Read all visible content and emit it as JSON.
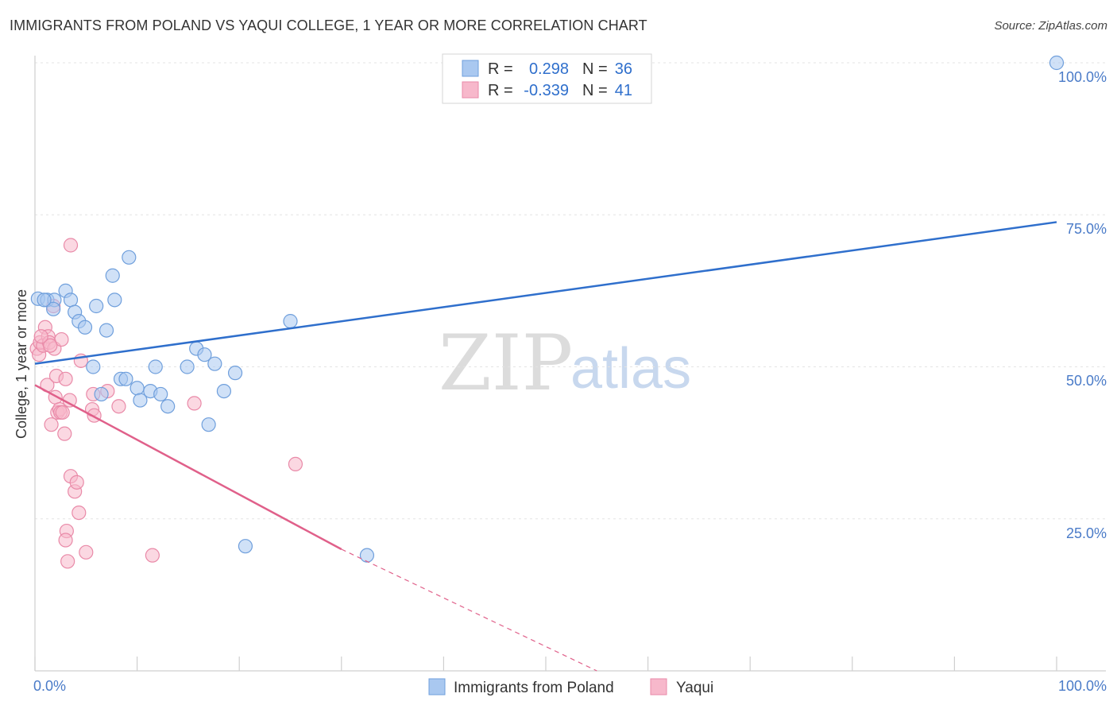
{
  "header": {
    "title": "IMMIGRANTS FROM POLAND VS YAQUI COLLEGE, 1 YEAR OR MORE CORRELATION CHART",
    "source": "Source: ZipAtlas.com"
  },
  "watermark": {
    "zip": "ZIP",
    "atlas": "atlas"
  },
  "legend": {
    "rows": [
      {
        "r_label": "R =",
        "r_value": "0.298",
        "n_label": "N =",
        "n_value": "36"
      },
      {
        "r_label": "R =",
        "r_value": "-0.339",
        "n_label": "N =",
        "n_value": "41"
      }
    ]
  },
  "colors": {
    "blue_fill": "#a9c8f0",
    "blue_stroke": "#6f9fdc",
    "blue_line": "#2f6fcc",
    "pink_fill": "#f7b8cb",
    "pink_stroke": "#e98aa8",
    "pink_line": "#e0608a"
  },
  "chart_data": {
    "type": "scatter",
    "title": "IMMIGRANTS FROM POLAND VS YAQUI COLLEGE, 1 YEAR OR MORE CORRELATION CHART",
    "xlabel": "",
    "ylabel": "College, 1 year or more",
    "xlim": [
      0,
      100
    ],
    "ylim": [
      0,
      100
    ],
    "x_tick_labels": [
      "0.0%",
      "100.0%"
    ],
    "y_tick_labels": [
      "25.0%",
      "50.0%",
      "75.0%",
      "100.0%"
    ],
    "y_ticks": [
      25,
      50,
      75,
      100
    ],
    "series": [
      {
        "name": "Immigrants from Poland",
        "color": "#a9c8f0",
        "R": 0.298,
        "N": 36,
        "trend": {
          "x0": 0,
          "y0": 50.5,
          "x1": 100,
          "y1": 73.8
        },
        "points": [
          [
            0.3,
            61.2
          ],
          [
            1.2,
            61.0
          ],
          [
            1.9,
            61.0
          ],
          [
            1.8,
            59.5
          ],
          [
            3.0,
            62.5
          ],
          [
            3.5,
            61.0
          ],
          [
            3.9,
            59.0
          ],
          [
            4.3,
            57.5
          ],
          [
            4.9,
            56.5
          ],
          [
            5.7,
            50.0
          ],
          [
            6.0,
            60.0
          ],
          [
            6.5,
            45.5
          ],
          [
            7.0,
            56.0
          ],
          [
            7.6,
            65.0
          ],
          [
            7.8,
            61.0
          ],
          [
            8.4,
            48.0
          ],
          [
            8.9,
            48.0
          ],
          [
            9.2,
            68.0
          ],
          [
            10.0,
            46.5
          ],
          [
            10.3,
            44.5
          ],
          [
            11.3,
            46.0
          ],
          [
            11.8,
            50.0
          ],
          [
            12.3,
            45.5
          ],
          [
            13.0,
            43.5
          ],
          [
            14.9,
            50.0
          ],
          [
            15.8,
            53.0
          ],
          [
            16.6,
            52.0
          ],
          [
            17.0,
            40.5
          ],
          [
            17.6,
            50.5
          ],
          [
            18.5,
            46.0
          ],
          [
            19.6,
            49.0
          ],
          [
            20.6,
            20.5
          ],
          [
            25.0,
            57.5
          ],
          [
            32.5,
            19.0
          ],
          [
            100.0,
            100.0
          ],
          [
            0.9,
            61.0
          ]
        ]
      },
      {
        "name": "Yaqui",
        "color": "#f7b8cb",
        "R": -0.339,
        "N": 41,
        "trend": {
          "x0": 0,
          "y0": 47.0,
          "x1": 30.0,
          "y1": 20.0
        },
        "trend_dashed": {
          "x0": 30.0,
          "y0": 20.0,
          "x1": 55.0,
          "y1": 0.0
        },
        "points": [
          [
            0.2,
            53.0
          ],
          [
            0.4,
            52.0
          ],
          [
            0.5,
            54.0
          ],
          [
            0.8,
            53.5
          ],
          [
            1.0,
            56.5
          ],
          [
            1.2,
            47.0
          ],
          [
            1.3,
            55.0
          ],
          [
            1.4,
            54.0
          ],
          [
            1.6,
            40.5
          ],
          [
            1.8,
            60.0
          ],
          [
            1.9,
            53.0
          ],
          [
            2.0,
            45.0
          ],
          [
            2.1,
            48.5
          ],
          [
            2.2,
            42.5
          ],
          [
            2.4,
            43.0
          ],
          [
            2.5,
            42.5
          ],
          [
            2.6,
            54.5
          ],
          [
            2.7,
            42.5
          ],
          [
            2.9,
            39.0
          ],
          [
            3.0,
            48.0
          ],
          [
            3.1,
            23.0
          ],
          [
            3.0,
            21.5
          ],
          [
            3.2,
            18.0
          ],
          [
            3.4,
            44.5
          ],
          [
            3.5,
            32.0
          ],
          [
            3.5,
            70.0
          ],
          [
            3.9,
            29.5
          ],
          [
            4.1,
            31.0
          ],
          [
            4.3,
            26.0
          ],
          [
            4.5,
            51.0
          ],
          [
            5.0,
            19.5
          ],
          [
            5.6,
            43.0
          ],
          [
            5.7,
            45.5
          ],
          [
            5.8,
            42.0
          ],
          [
            7.1,
            46.0
          ],
          [
            8.2,
            43.5
          ],
          [
            11.5,
            19.0
          ],
          [
            15.6,
            44.0
          ],
          [
            25.5,
            34.0
          ],
          [
            1.5,
            53.5
          ],
          [
            0.6,
            55.0
          ]
        ]
      }
    ]
  }
}
